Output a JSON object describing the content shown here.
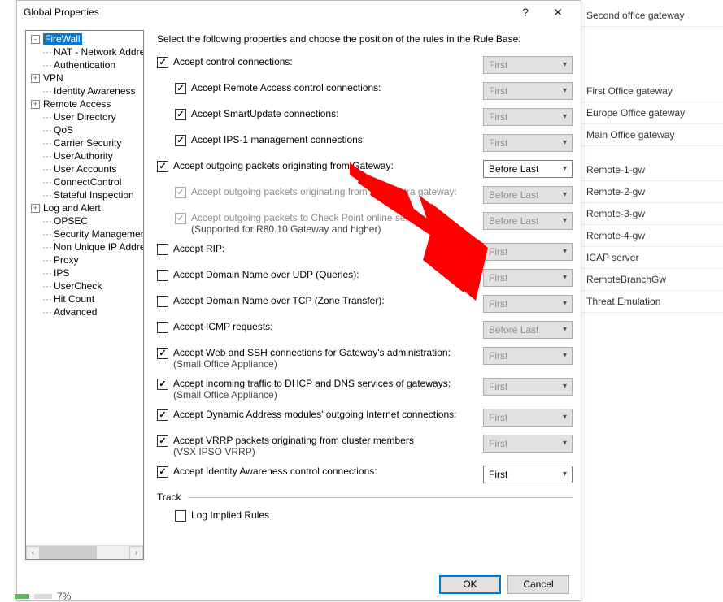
{
  "dialog": {
    "title": "Global Properties",
    "instruction": "Select the following properties and choose the position of the rules in the Rule Base:",
    "ok": "OK",
    "cancel": "Cancel"
  },
  "tree": [
    {
      "label": "FireWall",
      "level": 1,
      "expand": "-",
      "selected": true
    },
    {
      "label": "NAT - Network Address",
      "level": 2,
      "dots": true
    },
    {
      "label": "Authentication",
      "level": 2,
      "dots": true
    },
    {
      "label": "VPN",
      "level": 1,
      "expand": "+"
    },
    {
      "label": "Identity Awareness",
      "level": 2,
      "dots": true
    },
    {
      "label": "Remote Access",
      "level": 1,
      "expand": "+"
    },
    {
      "label": "User Directory",
      "level": 2,
      "dots": true
    },
    {
      "label": "QoS",
      "level": 2,
      "dots": true
    },
    {
      "label": "Carrier Security",
      "level": 2,
      "dots": true
    },
    {
      "label": "UserAuthority",
      "level": 2,
      "dots": true
    },
    {
      "label": "User Accounts",
      "level": 2,
      "dots": true
    },
    {
      "label": "ConnectControl",
      "level": 2,
      "dots": true
    },
    {
      "label": "Stateful Inspection",
      "level": 2,
      "dots": true
    },
    {
      "label": "Log and Alert",
      "level": 1,
      "expand": "+"
    },
    {
      "label": "OPSEC",
      "level": 2,
      "dots": true
    },
    {
      "label": "Security Management .",
      "level": 2,
      "dots": true
    },
    {
      "label": "Non Unique IP Address",
      "level": 2,
      "dots": true
    },
    {
      "label": "Proxy",
      "level": 2,
      "dots": true
    },
    {
      "label": "IPS",
      "level": 2,
      "dots": true
    },
    {
      "label": "UserCheck",
      "level": 2,
      "dots": true
    },
    {
      "label": "Hit Count",
      "level": 2,
      "dots": true
    },
    {
      "label": "Advanced",
      "level": 2,
      "dots": true
    }
  ],
  "rows": [
    {
      "id": "accept-control",
      "label": "Accept control connections:",
      "checked": true,
      "sel": "First",
      "sub": false,
      "disabled": false,
      "selDisabled": true
    },
    {
      "id": "accept-remote-access",
      "label": "Accept Remote Access control connections:",
      "checked": true,
      "sel": "First",
      "sub": true,
      "disabled": false,
      "selDisabled": true
    },
    {
      "id": "accept-smartupdate",
      "label": "Accept SmartUpdate connections:",
      "checked": true,
      "sel": "First",
      "sub": true,
      "disabled": false,
      "selDisabled": true
    },
    {
      "id": "accept-ips1",
      "label": "Accept IPS-1 management connections:",
      "checked": true,
      "sel": "First",
      "sub": true,
      "disabled": false,
      "selDisabled": true
    },
    {
      "id": "accept-outgoing-gw",
      "label": "Accept outgoing packets originating from Gateway:",
      "checked": true,
      "sel": "Before Last",
      "sub": false,
      "disabled": false,
      "selDisabled": false,
      "active": true
    },
    {
      "id": "accept-outgoing-connectra",
      "label": "Accept outgoing packets originating from Connectra gateway:",
      "checked": true,
      "sel": "Before Last",
      "sub": true,
      "disabled": true,
      "selDisabled": true
    },
    {
      "id": "accept-outgoing-cp-online",
      "label": "Accept outgoing packets to Check Point online services",
      "hint": "(Supported for R80.10 Gateway and higher)",
      "checked": true,
      "sel": "Before Last",
      "sub": true,
      "disabled": true,
      "selDisabled": true
    },
    {
      "id": "accept-rip",
      "label": "Accept RIP:",
      "checked": false,
      "sel": "First",
      "sub": false,
      "disabled": false,
      "selDisabled": true
    },
    {
      "id": "accept-dns-udp",
      "label": "Accept Domain Name over UDP (Queries):",
      "checked": false,
      "sel": "First",
      "sub": false,
      "disabled": false,
      "selDisabled": true
    },
    {
      "id": "accept-dns-tcp",
      "label": "Accept Domain Name over TCP (Zone Transfer):",
      "checked": false,
      "sel": "First",
      "sub": false,
      "disabled": false,
      "selDisabled": true
    },
    {
      "id": "accept-icmp",
      "label": "Accept ICMP requests:",
      "checked": false,
      "sel": "Before Last",
      "sub": false,
      "disabled": false,
      "selDisabled": true
    },
    {
      "id": "accept-web-ssh",
      "label": "Accept Web and SSH connections for Gateway's administration:",
      "hint": "(Small Office Appliance)",
      "checked": true,
      "sel": "First",
      "sub": false,
      "disabled": false,
      "selDisabled": true
    },
    {
      "id": "accept-dhcp-dns",
      "label": "Accept incoming traffic to DHCP and DNS services of gateways:",
      "hint": "(Small Office Appliance)",
      "checked": true,
      "sel": "First",
      "sub": false,
      "disabled": false,
      "selDisabled": true
    },
    {
      "id": "accept-dynamic-addr",
      "label": "Accept Dynamic Address modules' outgoing Internet connections:",
      "checked": true,
      "sel": "First",
      "sub": false,
      "disabled": false,
      "selDisabled": true
    },
    {
      "id": "accept-vrrp",
      "label": "Accept VRRP packets originating from cluster members",
      "hint": "(VSX IPSO VRRP)",
      "checked": true,
      "sel": "First",
      "sub": false,
      "disabled": false,
      "selDisabled": true
    },
    {
      "id": "accept-identity-awareness",
      "label": "Accept Identity Awareness control connections:",
      "checked": true,
      "sel": "First",
      "sub": false,
      "disabled": false,
      "selDisabled": false,
      "active": true
    }
  ],
  "track": {
    "header": "Track",
    "log_label": "Log Implied Rules",
    "log_checked": false
  },
  "bg_items": [
    "Second office gateway",
    "First Office gateway",
    "Europe Office gateway",
    "Main Office gateway",
    "Remote-1-gw",
    "Remote-2-gw",
    "Remote-3-gw",
    "Remote-4-gw",
    "ICAP server",
    "RemoteBranchGw",
    "Threat Emulation"
  ],
  "bg_spacing_after": {
    "0": 66,
    "3": 16
  },
  "frag_pct": "7%"
}
